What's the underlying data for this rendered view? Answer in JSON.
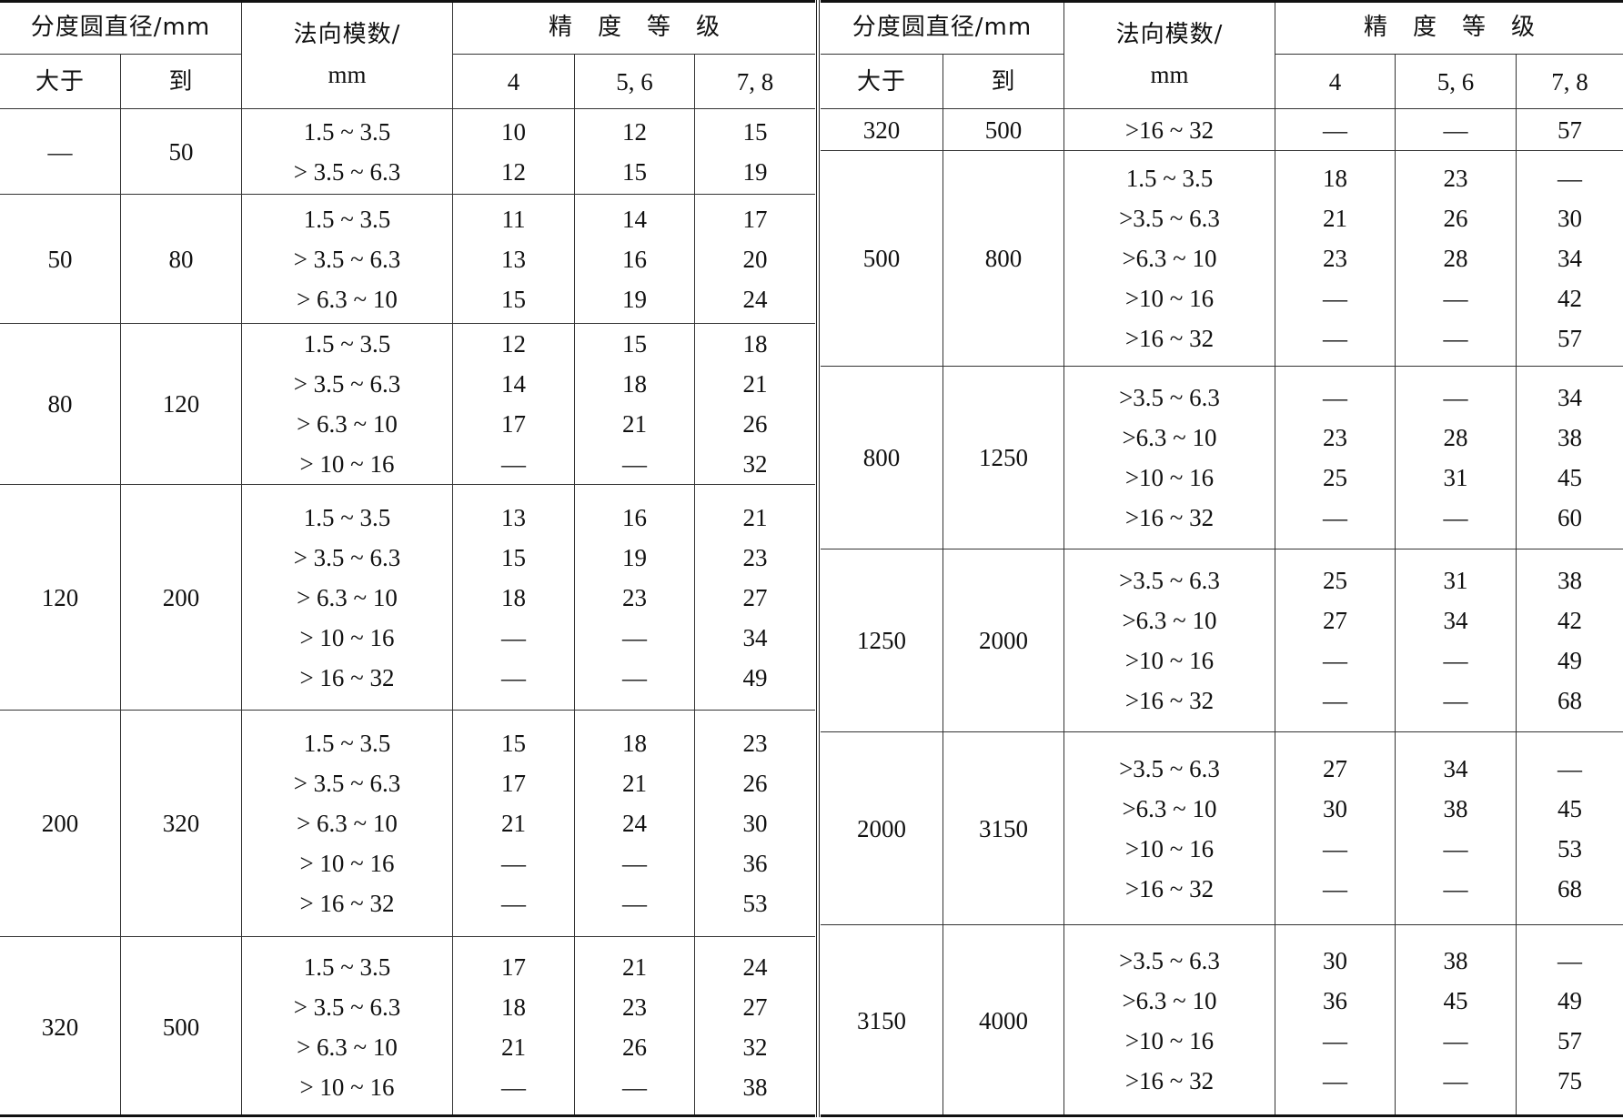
{
  "header": {
    "diameter": "分度圆直径/mm",
    "over": "大于",
    "to": "到",
    "module_line1": "法向模数/",
    "module_line2": "mm",
    "grade": "精度等级",
    "grade_cols": [
      "4",
      "5, 6",
      "7, 8"
    ]
  },
  "left_groups": [
    {
      "from": "—",
      "to": "50",
      "rows": [
        {
          "m": "1.5 ~ 3.5",
          "g4": "10",
          "g56": "12",
          "g78": "15"
        },
        {
          "m": "> 3.5 ~ 6.3",
          "g4": "12",
          "g56": "15",
          "g78": "19"
        }
      ]
    },
    {
      "from": "50",
      "to": "80",
      "rows": [
        {
          "m": "1.5 ~ 3.5",
          "g4": "11",
          "g56": "14",
          "g78": "17"
        },
        {
          "m": "> 3.5 ~ 6.3",
          "g4": "13",
          "g56": "16",
          "g78": "20"
        },
        {
          "m": "> 6.3 ~ 10",
          "g4": "15",
          "g56": "19",
          "g78": "24"
        }
      ]
    },
    {
      "from": "80",
      "to": "120",
      "rows": [
        {
          "m": "1.5 ~ 3.5",
          "g4": "12",
          "g56": "15",
          "g78": "18"
        },
        {
          "m": "> 3.5 ~ 6.3",
          "g4": "14",
          "g56": "18",
          "g78": "21"
        },
        {
          "m": "> 6.3 ~ 10",
          "g4": "17",
          "g56": "21",
          "g78": "26"
        },
        {
          "m": "> 10 ~ 16",
          "g4": "—",
          "g56": "—",
          "g78": "32"
        }
      ]
    },
    {
      "from": "120",
      "to": "200",
      "rows": [
        {
          "m": "1.5 ~ 3.5",
          "g4": "13",
          "g56": "16",
          "g78": "21"
        },
        {
          "m": "> 3.5 ~ 6.3",
          "g4": "15",
          "g56": "19",
          "g78": "23"
        },
        {
          "m": "> 6.3 ~ 10",
          "g4": "18",
          "g56": "23",
          "g78": "27"
        },
        {
          "m": "> 10 ~ 16",
          "g4": "—",
          "g56": "—",
          "g78": "34"
        },
        {
          "m": "> 16 ~ 32",
          "g4": "—",
          "g56": "—",
          "g78": "49"
        }
      ]
    },
    {
      "from": "200",
      "to": "320",
      "rows": [
        {
          "m": "1.5 ~ 3.5",
          "g4": "15",
          "g56": "18",
          "g78": "23"
        },
        {
          "m": "> 3.5 ~ 6.3",
          "g4": "17",
          "g56": "21",
          "g78": "26"
        },
        {
          "m": "> 6.3 ~ 10",
          "g4": "21",
          "g56": "24",
          "g78": "30"
        },
        {
          "m": "> 10 ~ 16",
          "g4": "—",
          "g56": "—",
          "g78": "36"
        },
        {
          "m": "> 16 ~ 32",
          "g4": "—",
          "g56": "—",
          "g78": "53"
        }
      ]
    },
    {
      "from": "320",
      "to": "500",
      "rows": [
        {
          "m": "1.5 ~ 3.5",
          "g4": "17",
          "g56": "21",
          "g78": "24"
        },
        {
          "m": "> 3.5 ~ 6.3",
          "g4": "18",
          "g56": "23",
          "g78": "27"
        },
        {
          "m": "> 6.3 ~ 10",
          "g4": "21",
          "g56": "26",
          "g78": "32"
        },
        {
          "m": "> 10 ~ 16",
          "g4": "—",
          "g56": "—",
          "g78": "38"
        }
      ]
    }
  ],
  "right_groups": [
    {
      "from": "320",
      "to": "500",
      "rows": [
        {
          "m": ">16 ~ 32",
          "g4": "—",
          "g56": "—",
          "g78": "57"
        }
      ]
    },
    {
      "from": "500",
      "to": "800",
      "rows": [
        {
          "m": "1.5 ~ 3.5",
          "g4": "18",
          "g56": "23",
          "g78": "—"
        },
        {
          "m": ">3.5 ~ 6.3",
          "g4": "21",
          "g56": "26",
          "g78": "30"
        },
        {
          "m": ">6.3 ~ 10",
          "g4": "23",
          "g56": "28",
          "g78": "34"
        },
        {
          "m": ">10 ~ 16",
          "g4": "—",
          "g56": "—",
          "g78": "42"
        },
        {
          "m": ">16 ~ 32",
          "g4": "—",
          "g56": "—",
          "g78": "57"
        }
      ]
    },
    {
      "from": "800",
      "to": "1250",
      "rows": [
        {
          "m": ">3.5 ~ 6.3",
          "g4": "—",
          "g56": "—",
          "g78": "34"
        },
        {
          "m": ">6.3 ~ 10",
          "g4": "23",
          "g56": "28",
          "g78": "38"
        },
        {
          "m": ">10 ~ 16",
          "g4": "25",
          "g56": "31",
          "g78": "45"
        },
        {
          "m": ">16 ~ 32",
          "g4": "—",
          "g56": "—",
          "g78": "60"
        }
      ]
    },
    {
      "from": "1250",
      "to": "2000",
      "rows": [
        {
          "m": ">3.5 ~ 6.3",
          "g4": "25",
          "g56": "31",
          "g78": "38"
        },
        {
          "m": ">6.3 ~ 10",
          "g4": "27",
          "g56": "34",
          "g78": "42"
        },
        {
          "m": ">10 ~ 16",
          "g4": "—",
          "g56": "—",
          "g78": "49"
        },
        {
          "m": ">16 ~ 32",
          "g4": "—",
          "g56": "—",
          "g78": "68"
        }
      ]
    },
    {
      "from": "2000",
      "to": "3150",
      "rows": [
        {
          "m": ">3.5 ~ 6.3",
          "g4": "27",
          "g56": "34",
          "g78": "—"
        },
        {
          "m": ">6.3 ~ 10",
          "g4": "30",
          "g56": "38",
          "g78": "45"
        },
        {
          "m": ">10 ~ 16",
          "g4": "—",
          "g56": "—",
          "g78": "53"
        },
        {
          "m": ">16 ~ 32",
          "g4": "—",
          "g56": "—",
          "g78": "68"
        }
      ]
    },
    {
      "from": "3150",
      "to": "4000",
      "rows": [
        {
          "m": ">3.5 ~ 6.3",
          "g4": "30",
          "g56": "38",
          "g78": "—"
        },
        {
          "m": ">6.3 ~ 10",
          "g4": "36",
          "g56": "45",
          "g78": "49"
        },
        {
          "m": ">10 ~ 16",
          "g4": "—",
          "g56": "—",
          "g78": "57"
        },
        {
          "m": ">16 ~ 32",
          "g4": "—",
          "g56": "—",
          "g78": "75"
        }
      ]
    }
  ]
}
